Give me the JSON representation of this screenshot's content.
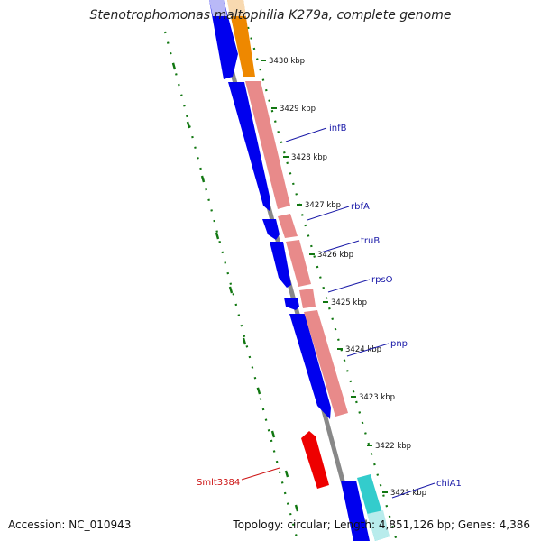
{
  "title": "Stenotrophomonas maltophilia K279a, complete genome",
  "footer": {
    "accession": "Accession: NC_010943",
    "summary": "Topology: circular; Length: 4,851,126 bp; Genes: 4,386"
  },
  "colors": {
    "forward_cds": "#0000ee",
    "rrna_like": "#e88a8a",
    "orange_feature": "#ee8800",
    "cyan_feature": "#33cccc",
    "reverse_gene": "#ee0000",
    "backbone": "#888888",
    "gc_ticks": "#117711",
    "label_blue": "#1a1aa8",
    "label_red": "#cc1111"
  },
  "ticks": [
    "3430 kbp",
    "3429 kbp",
    "3428 kbp",
    "3427 kbp",
    "3426 kbp",
    "3425 kbp",
    "3424 kbp",
    "3423 kbp",
    "3422 kbp",
    "3421 kbp"
  ],
  "gene_labels": [
    {
      "name": "infB",
      "color": "blue"
    },
    {
      "name": "rbfA",
      "color": "blue"
    },
    {
      "name": "truB",
      "color": "blue"
    },
    {
      "name": "rpsO",
      "color": "blue"
    },
    {
      "name": "pnp",
      "color": "blue"
    },
    {
      "name": "Smlt3384",
      "color": "red"
    },
    {
      "name": "chiA1",
      "color": "blue"
    }
  ]
}
